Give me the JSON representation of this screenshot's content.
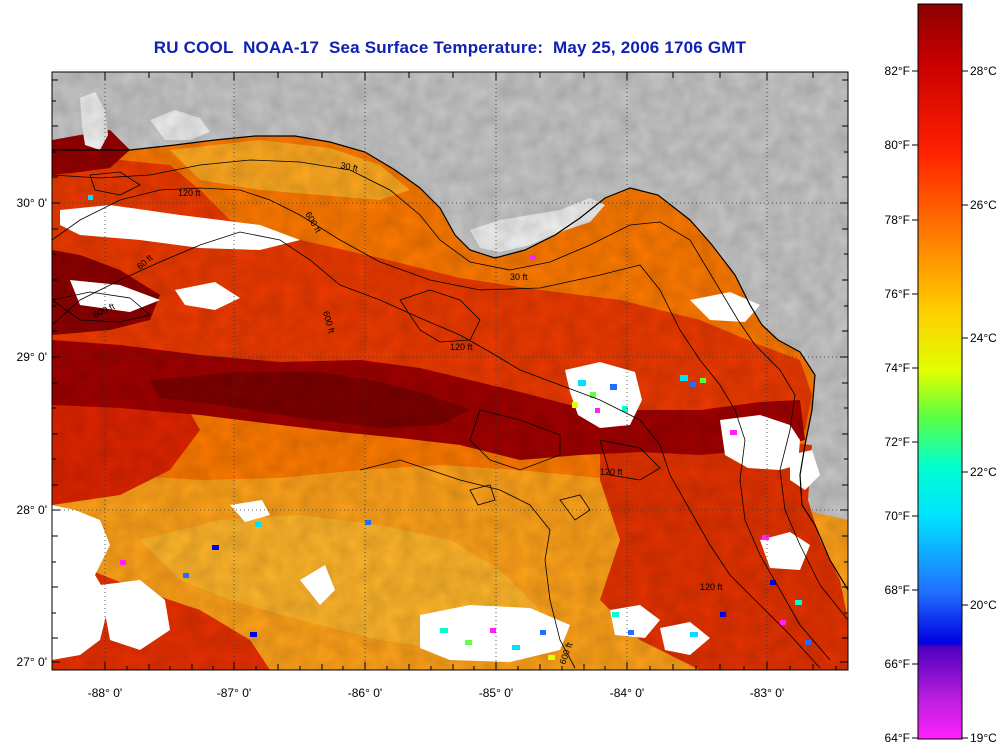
{
  "title": "RU COOL  NOAA-17  Sea Surface Temperature:  May 25, 2006 1706 GMT",
  "map": {
    "lat_labels": [
      "30° 0'",
      "29° 0'",
      "28° 0'",
      "27° 0'"
    ],
    "lon_labels": [
      "-88° 0'",
      "-87° 0'",
      "-86° 0'",
      "-85° 0'",
      "-84° 0'",
      "-83° 0'"
    ],
    "contour_labels": [
      "30 ft",
      "120 ft",
      "600 ft",
      "60 ft",
      "30 ft",
      "600 ft",
      "120 ft",
      "600 ft",
      "120 ft",
      "600 ft",
      "120 ft"
    ],
    "colors": {
      "land": "#c8c8c8",
      "cloud": "#ffffff",
      "warm_dark": "#8b0000",
      "warm_red": "#e02000",
      "warm_orange": "#ff7000",
      "warm_yellow": "#ffc000"
    }
  },
  "colorbar": {
    "f_labels": [
      "82°F",
      "80°F",
      "78°F",
      "76°F",
      "74°F",
      "72°F",
      "70°F",
      "68°F",
      "66°F",
      "64°F"
    ],
    "c_labels": [
      "28°C",
      "26°C",
      "24°C",
      "22°C",
      "20°C",
      "19°C"
    ]
  }
}
